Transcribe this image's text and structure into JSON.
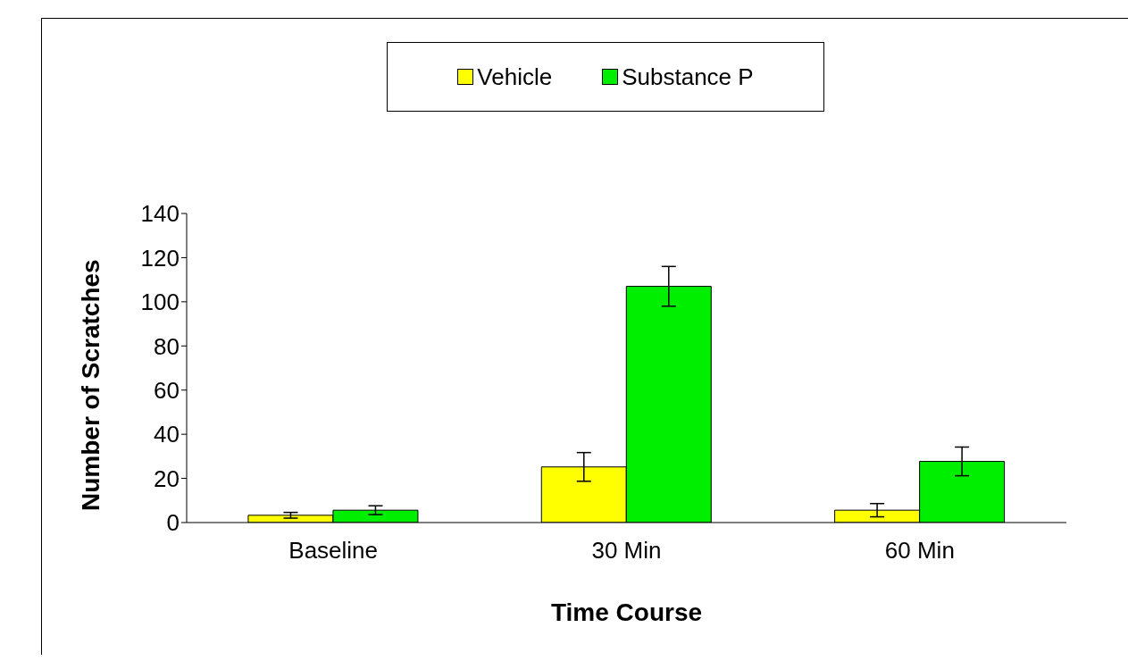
{
  "chart_data": {
    "type": "bar",
    "xlabel": "Time Course",
    "ylabel": "Number of Scratches",
    "categories": [
      "Baseline",
      "30 Min",
      "60 Min"
    ],
    "series": [
      {
        "name": "Vehicle",
        "color": "#ffff00",
        "values": [
          3.3,
          25.2,
          5.6
        ],
        "errors": [
          1.3,
          6.5,
          3
        ]
      },
      {
        "name": "Substance P",
        "color": "#00ee00",
        "values": [
          5.6,
          107,
          27.7
        ],
        "errors": [
          2,
          9,
          6.5
        ]
      }
    ],
    "ylim": [
      0,
      140
    ],
    "yticks": [
      0,
      20,
      40,
      60,
      80,
      100,
      120,
      140
    ],
    "grid": false,
    "legend": "top"
  }
}
